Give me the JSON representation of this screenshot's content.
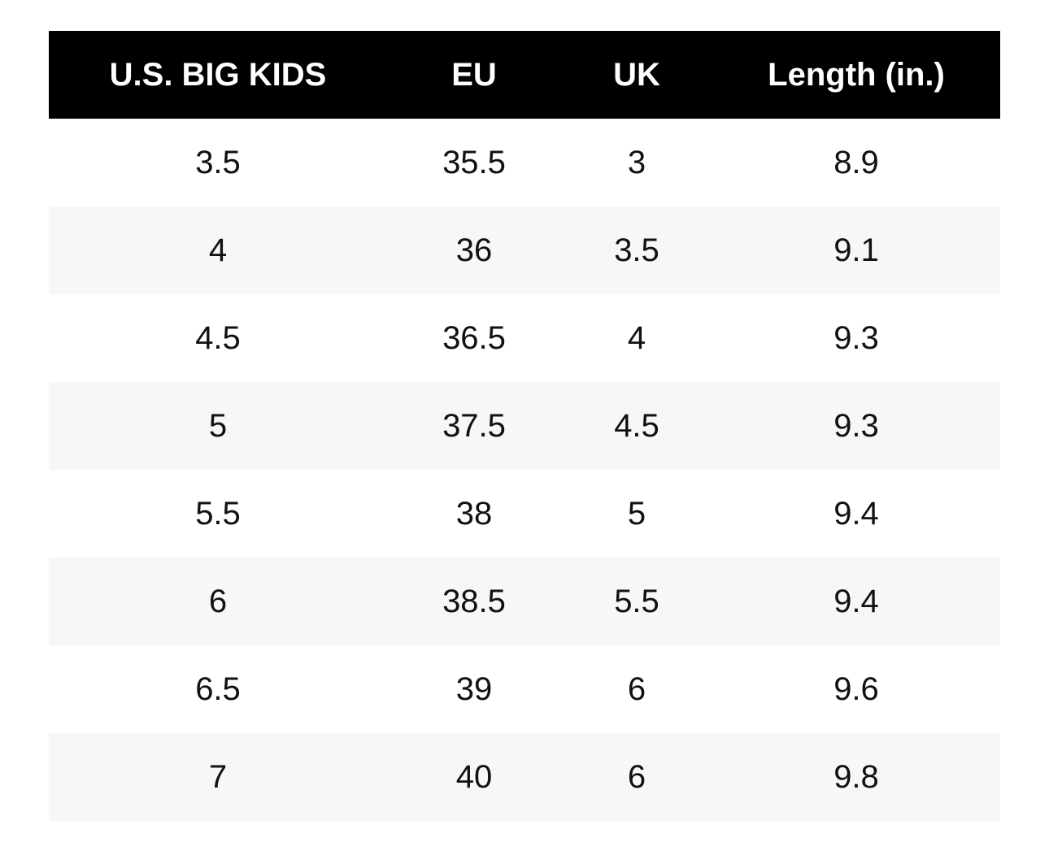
{
  "table": {
    "headers": [
      "U.S. BIG KIDS",
      "EU",
      "UK",
      "Length (in.)"
    ],
    "rows": [
      [
        "3.5",
        "35.5",
        "3",
        "8.9"
      ],
      [
        "4",
        "36",
        "3.5",
        "9.1"
      ],
      [
        "4.5",
        "36.5",
        "4",
        "9.3"
      ],
      [
        "5",
        "37.5",
        "4.5",
        "9.3"
      ],
      [
        "5.5",
        "38",
        "5",
        "9.4"
      ],
      [
        "6",
        "38.5",
        "5.5",
        "9.4"
      ],
      [
        "6.5",
        "39",
        "6",
        "9.6"
      ],
      [
        "7",
        "40",
        "6",
        "9.8"
      ]
    ]
  }
}
